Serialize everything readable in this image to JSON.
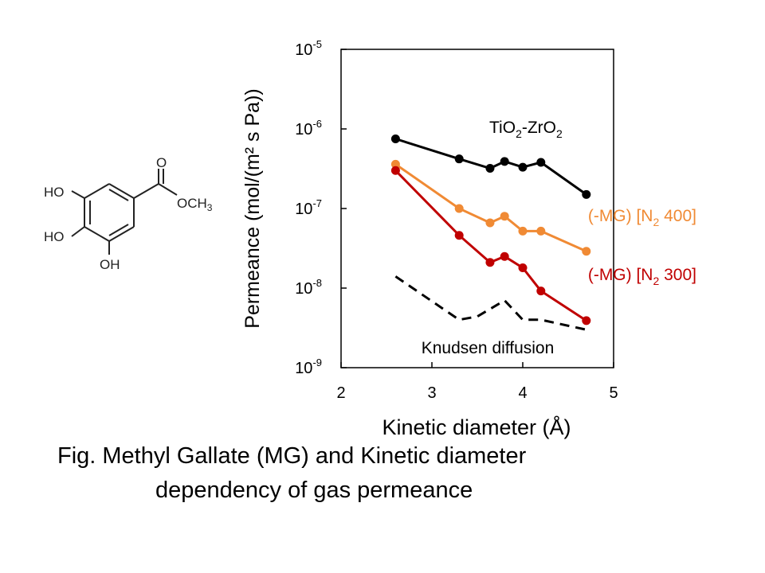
{
  "molecule": {
    "atoms": {
      "ho_top": "HO",
      "ho_mid": "HO",
      "oh_bottom": "OH",
      "carbonyl_o": "O",
      "methoxy": "OCH",
      "methoxy_sub": "3"
    }
  },
  "chart_data": {
    "type": "line",
    "y_scale": "log",
    "xlim": [
      2,
      5
    ],
    "ylim": [
      1e-09,
      1e-05
    ],
    "xticks": [
      "2",
      "3",
      "4",
      "5"
    ],
    "yticks": [
      {
        "base": "10",
        "exp": "-9"
      },
      {
        "base": "10",
        "exp": "-8"
      },
      {
        "base": "10",
        "exp": "-7"
      },
      {
        "base": "10",
        "exp": "-6"
      },
      {
        "base": "10",
        "exp": "-5"
      }
    ],
    "xlabel": "Kinetic diameter (Å)",
    "ylabel": "Permeance  (mol/(m² s Pa))",
    "grid": false,
    "series": [
      {
        "label_parts": [
          "TiO",
          "2",
          "-ZrO",
          "2"
        ],
        "color": "#000000",
        "markers": true,
        "x": [
          2.6,
          3.3,
          3.64,
          3.8,
          4.0,
          4.2,
          4.7
        ],
        "y": [
          7.5e-07,
          4.2e-07,
          3.2e-07,
          3.9e-07,
          3.3e-07,
          3.8e-07,
          1.5e-07
        ]
      },
      {
        "label_parts": [
          "(-MG) [N",
          "2",
          " 400]"
        ],
        "color": "#f08a34",
        "markers": true,
        "x": [
          2.6,
          3.3,
          3.64,
          3.8,
          4.0,
          4.2,
          4.7
        ],
        "y": [
          3.6e-07,
          1e-07,
          6.6e-08,
          8e-08,
          5.2e-08,
          5.2e-08,
          2.9e-08
        ]
      },
      {
        "label_parts": [
          "(-MG) [N",
          "2",
          " 300]"
        ],
        "color": "#c00000",
        "markers": true,
        "x": [
          2.6,
          3.3,
          3.64,
          3.8,
          4.0,
          4.2,
          4.7
        ],
        "y": [
          3e-07,
          4.6e-08,
          2.1e-08,
          2.5e-08,
          1.8e-08,
          9.2e-09,
          3.9e-09
        ]
      },
      {
        "label_parts": [
          "Knudsen diffusion"
        ],
        "color": "#000000",
        "markers": false,
        "dashed": true,
        "x": [
          2.6,
          3.3,
          3.5,
          3.8,
          4.0,
          4.2,
          4.7
        ],
        "y": [
          1.4e-08,
          4e-09,
          4.4e-09,
          7e-09,
          4e-09,
          4e-09,
          3e-09
        ]
      }
    ]
  },
  "caption": {
    "line1": "Fig.  Methyl Gallate (MG) and Kinetic diameter",
    "line2": "dependency of gas permeance"
  }
}
